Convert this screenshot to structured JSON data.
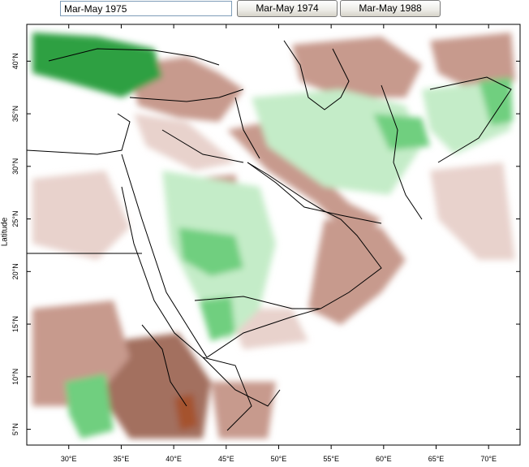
{
  "controls": {
    "period_value": "Mar-May 1975",
    "button_1_label": "Mar-May 1974",
    "button_2_label": "Mar-May 1988"
  },
  "map": {
    "ylabel": "Latitude",
    "lon_range": [
      26,
      73
    ],
    "lat_range": [
      3.5,
      43.5
    ],
    "x_ticks": [
      "30°E",
      "35°E",
      "40°E",
      "45°E",
      "50°E",
      "55°E",
      "60°E",
      "65°E",
      "70°E"
    ],
    "x_tick_values": [
      30,
      35,
      40,
      45,
      50,
      55,
      60,
      65,
      70
    ],
    "y_ticks": [
      "5°N",
      "10°N",
      "15°N",
      "20°N",
      "25°N",
      "30°N",
      "35°N",
      "40°N"
    ],
    "y_tick_values": [
      5,
      10,
      15,
      20,
      25,
      30,
      35,
      40
    ],
    "colors": {
      "wet_strong": "#2ea043",
      "wet_medium": "#6fcf7f",
      "wet_light": "#c4ecc8",
      "dry_light": "#e8d2cc",
      "dry_medium": "#c79a8d",
      "dry_strong": "#a3705f",
      "dry_extreme": "#a5522f",
      "borders": "#000000"
    }
  }
}
